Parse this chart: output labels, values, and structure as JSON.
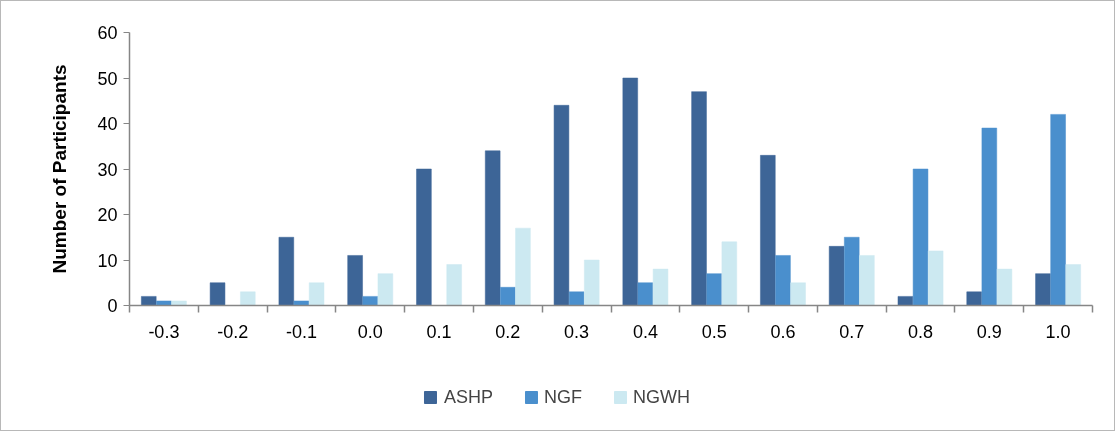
{
  "chart_data": {
    "type": "bar",
    "ylabel": "Number of Participants",
    "categories": [
      "-0.3",
      "-0.2",
      "-0.1",
      "0.0",
      "0.1",
      "0.2",
      "0.3",
      "0.4",
      "0.5",
      "0.6",
      "0.7",
      "0.8",
      "0.9",
      "1.0"
    ],
    "series": [
      {
        "name": "ASHP",
        "color": "#3d6597",
        "values": [
          2,
          5,
          15,
          11,
          30,
          34,
          44,
          50,
          47,
          33,
          13,
          2,
          3,
          7
        ]
      },
      {
        "name": "NGF",
        "color": "#4a8fcd",
        "values": [
          1,
          0,
          1,
          2,
          0,
          4,
          3,
          5,
          7,
          11,
          15,
          30,
          39,
          42
        ]
      },
      {
        "name": "NGWH",
        "color": "#cce9f1",
        "values": [
          1,
          3,
          5,
          7,
          9,
          17,
          10,
          8,
          14,
          5,
          11,
          12,
          8,
          9
        ]
      }
    ],
    "ylim": [
      0,
      60
    ],
    "yticks": [
      0,
      10,
      20,
      30,
      40,
      50,
      60
    ],
    "legend": "bottom"
  }
}
